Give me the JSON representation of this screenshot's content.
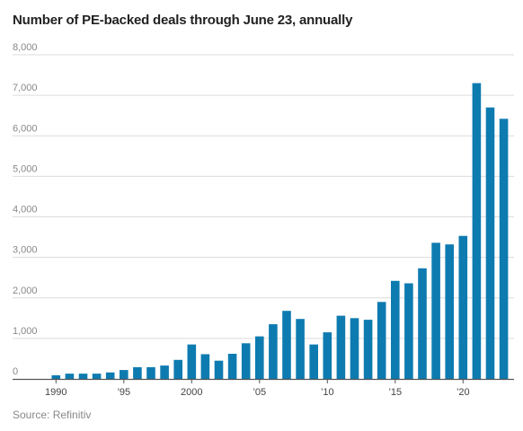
{
  "title": "Number of PE-backed deals through June 23, annually",
  "source": "Source: Refinitiv",
  "colors": {
    "bar": "#0e7bb0",
    "grid": "#dcdcdc",
    "axis": "#555555"
  },
  "chart_data": {
    "type": "bar",
    "title": "Number of PE-backed deals through June 23, annually",
    "xlabel": "",
    "ylabel": "",
    "ylim": [
      0,
      8000
    ],
    "grid": true,
    "yticks": [
      0,
      1000,
      2000,
      3000,
      4000,
      5000,
      6000,
      7000,
      8000
    ],
    "ytick_labels": [
      "0",
      "1,000",
      "2,000",
      "3,000",
      "4,000",
      "5,000",
      "6,000",
      "7,000",
      "8,000"
    ],
    "xticks": [
      {
        "year": 1990,
        "label": "1990"
      },
      {
        "year": 1995,
        "label": "’95"
      },
      {
        "year": 2000,
        "label": "2000"
      },
      {
        "year": 2005,
        "label": "’05"
      },
      {
        "year": 2010,
        "label": "’10"
      },
      {
        "year": 2015,
        "label": "’15"
      },
      {
        "year": 2020,
        "label": "’20"
      }
    ],
    "categories": [
      1990,
      1991,
      1992,
      1993,
      1994,
      1995,
      1996,
      1997,
      1998,
      1999,
      2000,
      2001,
      2002,
      2003,
      2004,
      2005,
      2006,
      2007,
      2008,
      2009,
      2010,
      2011,
      2012,
      2013,
      2014,
      2015,
      2016,
      2017,
      2018,
      2019,
      2020,
      2021,
      2022,
      2023
    ],
    "values": [
      90,
      130,
      130,
      130,
      160,
      220,
      290,
      290,
      330,
      470,
      850,
      610,
      450,
      620,
      880,
      1050,
      1350,
      1680,
      1480,
      850,
      1150,
      1560,
      1500,
      1460,
      1900,
      2420,
      2360,
      2730,
      3360,
      3320,
      3530,
      7300,
      6700,
      6420
    ]
  }
}
